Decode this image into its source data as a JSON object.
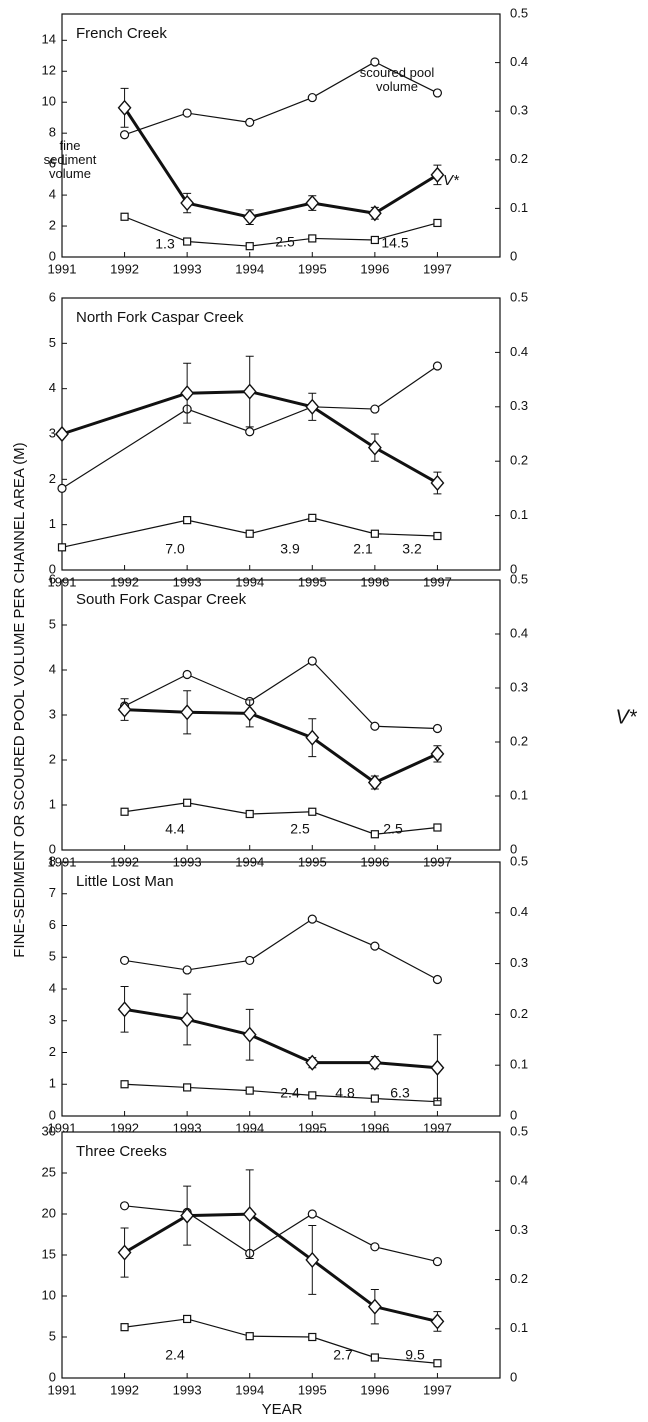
{
  "figure": {
    "ylabel": "FINE-SEDIMENT OR SCOURED POOL VOLUME PER CHANNEL AREA (M)",
    "y2label": "V*",
    "xlabel": "YEAR"
  },
  "chart_data": [
    {
      "type": "line",
      "title": "French Creek",
      "x": [
        1992,
        1993,
        1994,
        1995,
        1996,
        1997
      ],
      "xlim": [
        1991,
        1998
      ],
      "xticks": [
        1991,
        1992,
        1993,
        1994,
        1995,
        1996,
        1997
      ],
      "ylim": [
        0,
        15.7
      ],
      "yticks": [
        0,
        2,
        4,
        6,
        8,
        10,
        12,
        14
      ],
      "y2lim": [
        0,
        0.5
      ],
      "y2ticks": [
        0,
        0.1,
        0.2,
        0.3,
        0.4,
        0.5
      ],
      "series": [
        {
          "name": "scoured pool volume",
          "marker": "circle",
          "color": "#111",
          "values": [
            7.9,
            9.3,
            8.7,
            10.3,
            12.6,
            10.6
          ]
        },
        {
          "name": "fine sediment volume",
          "marker": "square",
          "color": "#111",
          "values": [
            2.6,
            1.0,
            0.7,
            1.2,
            1.1,
            2.2
          ]
        },
        {
          "name": "V*",
          "marker": "diamond",
          "color": "#111",
          "axis": "y2",
          "values": [
            0.307,
            0.111,
            0.082,
            0.111,
            0.09,
            0.169
          ],
          "errors": [
            0.04,
            0.02,
            0.015,
            0.015,
            0.012,
            0.02
          ]
        }
      ],
      "annotations": [
        "1.3",
        "2.5",
        "14.5"
      ]
    },
    {
      "type": "line",
      "title": "North Fork Caspar Creek",
      "x": [
        1991,
        1993,
        1994,
        1995,
        1996,
        1997
      ],
      "xlim": [
        1991,
        1998
      ],
      "xticks": [
        1991,
        1992,
        1993,
        1994,
        1995,
        1996,
        1997
      ],
      "ylim": [
        0,
        6
      ],
      "yticks": [
        0,
        1,
        2,
        3,
        4,
        5,
        6
      ],
      "y2lim": [
        0,
        0.5
      ],
      "y2ticks": [
        0,
        0.1,
        0.2,
        0.3,
        0.4,
        0.5
      ],
      "series": [
        {
          "marker": "circle",
          "color": "#111",
          "values": [
            1.8,
            3.55,
            3.05,
            3.6,
            3.55,
            4.5
          ]
        },
        {
          "marker": "square",
          "color": "#111",
          "values": [
            0.5,
            1.1,
            0.8,
            1.15,
            0.8,
            0.75
          ]
        },
        {
          "marker": "diamond",
          "color": "#111",
          "axis": "y2",
          "values": [
            0.25,
            0.325,
            0.328,
            0.3,
            0.225,
            0.16
          ],
          "errors": [
            0,
            0.055,
            0.065,
            0.025,
            0.025,
            0.02
          ]
        }
      ],
      "annotations": [
        "7.0",
        "3.9",
        "2.1",
        "3.2"
      ]
    },
    {
      "type": "line",
      "title": "South Fork Caspar Creek",
      "x": [
        1992,
        1993,
        1994,
        1995,
        1996,
        1997
      ],
      "xlim": [
        1991,
        1998
      ],
      "xticks": [
        1991,
        1992,
        1993,
        1994,
        1995,
        1996,
        1997
      ],
      "ylim": [
        0,
        6
      ],
      "yticks": [
        0,
        1,
        2,
        3,
        4,
        5,
        6
      ],
      "y2lim": [
        0,
        0.5
      ],
      "y2ticks": [
        0,
        0.1,
        0.2,
        0.3,
        0.4,
        0.5
      ],
      "series": [
        {
          "marker": "circle",
          "color": "#111",
          "values": [
            3.2,
            3.9,
            3.3,
            4.2,
            2.75,
            2.7
          ]
        },
        {
          "marker": "square",
          "color": "#111",
          "values": [
            0.85,
            1.05,
            0.8,
            0.85,
            0.35,
            0.5
          ]
        },
        {
          "marker": "diamond",
          "color": "#111",
          "axis": "y2",
          "values": [
            0.26,
            0.255,
            0.253,
            0.208,
            0.125,
            0.178
          ],
          "errors": [
            0.02,
            0.04,
            0.025,
            0.035,
            0.012,
            0.015
          ]
        }
      ],
      "annotations": [
        "4.4",
        "2.5",
        "2.5"
      ]
    },
    {
      "type": "line",
      "title": "Little Lost Man",
      "x": [
        1992,
        1993,
        1994,
        1995,
        1996,
        1997
      ],
      "xlim": [
        1991,
        1998
      ],
      "xticks": [
        1991,
        1992,
        1993,
        1994,
        1995,
        1996,
        1997
      ],
      "ylim": [
        0,
        8
      ],
      "yticks": [
        0,
        1,
        2,
        3,
        4,
        5,
        6,
        7,
        8
      ],
      "y2lim": [
        0,
        0.5
      ],
      "y2ticks": [
        0,
        0.1,
        0.2,
        0.3,
        0.4,
        0.5
      ],
      "series": [
        {
          "marker": "circle",
          "color": "#111",
          "values": [
            4.9,
            4.6,
            4.9,
            6.2,
            5.35,
            4.3
          ]
        },
        {
          "marker": "square",
          "color": "#111",
          "values": [
            1.0,
            0.9,
            0.8,
            0.65,
            0.55,
            0.45
          ]
        },
        {
          "marker": "diamond",
          "color": "#111",
          "axis": "y2",
          "values": [
            0.21,
            0.19,
            0.16,
            0.105,
            0.105,
            0.095
          ],
          "errors": [
            0.045,
            0.05,
            0.05,
            0.01,
            0.012,
            0.065
          ]
        }
      ],
      "annotations": [
        "2.4",
        "4.8",
        "6.3"
      ]
    },
    {
      "type": "line",
      "title": "Three Creeks",
      "x": [
        1992,
        1993,
        1994,
        1995,
        1996,
        1997
      ],
      "xlim": [
        1991,
        1998
      ],
      "xticks": [
        1991,
        1992,
        1993,
        1994,
        1995,
        1996,
        1997
      ],
      "ylim": [
        0,
        30
      ],
      "yticks": [
        0,
        5,
        10,
        15,
        20,
        25,
        30
      ],
      "y2lim": [
        0,
        0.5
      ],
      "y2ticks": [
        0,
        0.1,
        0.2,
        0.3,
        0.4,
        0.5
      ],
      "series": [
        {
          "marker": "circle",
          "color": "#111",
          "values": [
            21,
            20.2,
            15.2,
            20,
            16,
            14.2
          ]
        },
        {
          "marker": "square",
          "color": "#111",
          "values": [
            6.2,
            7.2,
            5.1,
            5.0,
            2.5,
            1.8
          ]
        },
        {
          "marker": "diamond",
          "color": "#111",
          "axis": "y2",
          "values": [
            0.255,
            0.33,
            0.333,
            0.24,
            0.145,
            0.115
          ],
          "errors": [
            0.05,
            0.06,
            0.09,
            0.07,
            0.035,
            0.02
          ]
        }
      ],
      "annotations": [
        "2.4",
        "2.7",
        "9.5"
      ]
    }
  ]
}
